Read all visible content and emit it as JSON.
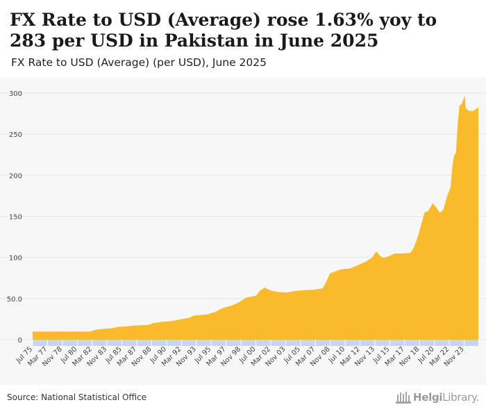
{
  "header": {
    "title": "FX Rate to USD (Average) rose 1.63% yoy to 283 per USD in Pakistan in June 2025",
    "subtitle": "FX Rate to USD (Average) (per USD), June 2025"
  },
  "footer": {
    "source": "Source: National Statistical Office",
    "logo_bold": "Helgi",
    "logo_light": "Library."
  },
  "colors": {
    "fill": "#f9bb2c",
    "axis_band": "#c7d6ec",
    "grid": "#e6e6e6"
  },
  "chart_data": {
    "type": "area",
    "title": "FX Rate to USD (Average) (per USD)",
    "xlabel": "",
    "ylabel": "per USD",
    "ylim": [
      0,
      300
    ],
    "yticks": [
      0,
      50,
      100,
      150,
      200,
      250,
      300
    ],
    "ytick_labels": [
      "0",
      "50.0",
      "100",
      "150",
      "200",
      "250",
      "300"
    ],
    "xrange": [
      1975.5,
      2025.42
    ],
    "xticks": [
      {
        "label": "Jul 75",
        "t": 1975.5
      },
      {
        "label": "Mar 77",
        "t": 1977.17
      },
      {
        "label": "Nov 78",
        "t": 1978.83
      },
      {
        "label": "Jul 80",
        "t": 1980.5
      },
      {
        "label": "Mar 82",
        "t": 1982.17
      },
      {
        "label": "Nov 83",
        "t": 1983.83
      },
      {
        "label": "Jul 85",
        "t": 1985.5
      },
      {
        "label": "Mar 87",
        "t": 1987.17
      },
      {
        "label": "Nov 88",
        "t": 1988.83
      },
      {
        "label": "Jul 90",
        "t": 1990.5
      },
      {
        "label": "Mar 92",
        "t": 1992.17
      },
      {
        "label": "Nov 93",
        "t": 1993.83
      },
      {
        "label": "Jul 95",
        "t": 1995.5
      },
      {
        "label": "Mar 97",
        "t": 1997.17
      },
      {
        "label": "Nov 98",
        "t": 1998.83
      },
      {
        "label": "Jul 00",
        "t": 2000.5
      },
      {
        "label": "Mar 02",
        "t": 2002.17
      },
      {
        "label": "Nov 03",
        "t": 2003.83
      },
      {
        "label": "Jul 05",
        "t": 2005.5
      },
      {
        "label": "Mar 07",
        "t": 2007.17
      },
      {
        "label": "Nov 08",
        "t": 2008.83
      },
      {
        "label": "Jul 10",
        "t": 2010.5
      },
      {
        "label": "Mar 12",
        "t": 2012.17
      },
      {
        "label": "Nov 13",
        "t": 2013.83
      },
      {
        "label": "Jul 15",
        "t": 2015.5
      },
      {
        "label": "Mar 17",
        "t": 2017.17
      },
      {
        "label": "Nov 18",
        "t": 2018.83
      },
      {
        "label": "Jul 20",
        "t": 2020.5
      },
      {
        "label": "Mar 22",
        "t": 2022.17
      },
      {
        "label": "Nov 23",
        "t": 2023.83
      }
    ],
    "series": [
      {
        "name": "FX Rate to USD (Average)",
        "points": [
          [
            1975.5,
            9.9
          ],
          [
            1982.0,
            9.9
          ],
          [
            1982.5,
            11.8
          ],
          [
            1983.0,
            12.8
          ],
          [
            1984.5,
            14.0
          ],
          [
            1985.0,
            15.5
          ],
          [
            1986.0,
            16.3
          ],
          [
            1987.0,
            17.3
          ],
          [
            1988.5,
            18.0
          ],
          [
            1989.0,
            20.0
          ],
          [
            1990.0,
            21.7
          ],
          [
            1991.0,
            22.5
          ],
          [
            1992.0,
            24.7
          ],
          [
            1993.0,
            26.5
          ],
          [
            1993.6,
            29.5
          ],
          [
            1995.0,
            30.7
          ],
          [
            1996.0,
            34.0
          ],
          [
            1996.8,
            38.5
          ],
          [
            1997.8,
            41.5
          ],
          [
            1998.5,
            45.0
          ],
          [
            1999.5,
            51.5
          ],
          [
            2000.5,
            53.5
          ],
          [
            2001.0,
            60.0
          ],
          [
            2001.5,
            63.5
          ],
          [
            2002.0,
            60.5
          ],
          [
            2002.5,
            59.0
          ],
          [
            2003.0,
            58.0
          ],
          [
            2004.0,
            57.5
          ],
          [
            2005.0,
            59.5
          ],
          [
            2006.0,
            60.3
          ],
          [
            2007.0,
            60.8
          ],
          [
            2008.0,
            62.5
          ],
          [
            2008.4,
            71.0
          ],
          [
            2008.8,
            80.5
          ],
          [
            2009.5,
            83.5
          ],
          [
            2010.0,
            85.5
          ],
          [
            2011.0,
            86.5
          ],
          [
            2012.0,
            91.0
          ],
          [
            2012.8,
            95.0
          ],
          [
            2013.5,
            99.5
          ],
          [
            2014.0,
            107.5
          ],
          [
            2014.4,
            102.0
          ],
          [
            2014.8,
            99.5
          ],
          [
            2015.5,
            102.0
          ],
          [
            2016.0,
            104.8
          ],
          [
            2017.0,
            104.9
          ],
          [
            2017.8,
            105.5
          ],
          [
            2018.2,
            112.0
          ],
          [
            2018.6,
            124.0
          ],
          [
            2019.0,
            139.0
          ],
          [
            2019.4,
            155.0
          ],
          [
            2019.8,
            156.5
          ],
          [
            2020.3,
            166.0
          ],
          [
            2020.7,
            161.0
          ],
          [
            2021.1,
            154.5
          ],
          [
            2021.5,
            158.0
          ],
          [
            2021.9,
            174.0
          ],
          [
            2022.3,
            185.0
          ],
          [
            2022.5,
            210.0
          ],
          [
            2022.7,
            224.0
          ],
          [
            2022.9,
            227.0
          ],
          [
            2023.1,
            262.0
          ],
          [
            2023.3,
            284.0
          ],
          [
            2023.6,
            287.5
          ],
          [
            2023.9,
            297.0
          ],
          [
            2024.0,
            282.0
          ],
          [
            2024.3,
            278.5
          ],
          [
            2024.8,
            278.0
          ],
          [
            2025.0,
            279.5
          ],
          [
            2025.42,
            283.0
          ]
        ]
      }
    ]
  }
}
